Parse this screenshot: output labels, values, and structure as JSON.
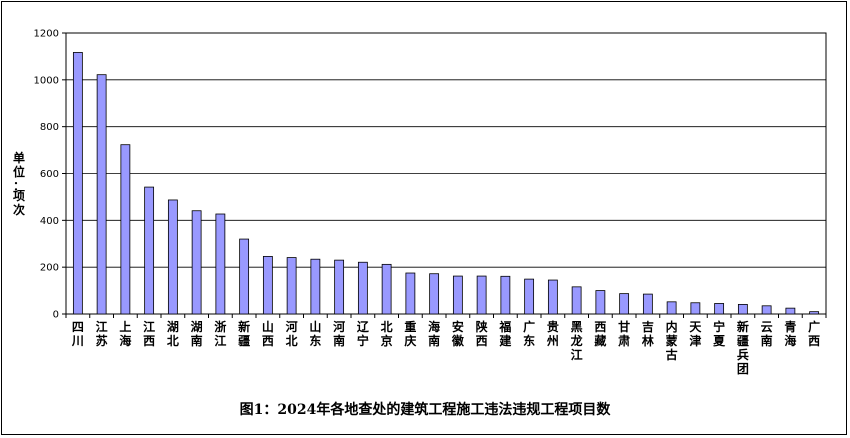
{
  "chart_data": {
    "type": "bar",
    "title": "图1：2024年各地查处的建筑工程施工违法违规工程项目数",
    "ylabel": "单位：项次",
    "ylim": [
      0,
      1200
    ],
    "yticks": [
      0,
      200,
      400,
      600,
      800,
      1000,
      1200
    ],
    "grid": true,
    "legend": "none",
    "bar_color": "#9999ff",
    "categories": [
      "四川",
      "江苏",
      "上海",
      "江西",
      "湖北",
      "湖南",
      "浙江",
      "新疆",
      "山西",
      "河北",
      "山东",
      "河南",
      "辽宁",
      "北京",
      "重庆",
      "海南",
      "安徽",
      "陕西",
      "福建",
      "广东",
      "贵州",
      "黑龙江",
      "西藏",
      "甘肃",
      "吉林",
      "内蒙古",
      "天津",
      "宁夏",
      "新疆兵团",
      "云南",
      "青海",
      "广西"
    ],
    "values": [
      1117,
      1022,
      723,
      542,
      487,
      441,
      427,
      320,
      246,
      241,
      234,
      230,
      221,
      212,
      175,
      172,
      162,
      162,
      161,
      149,
      145,
      116,
      100,
      87,
      85,
      52,
      48,
      45,
      41,
      35,
      25,
      10
    ]
  }
}
